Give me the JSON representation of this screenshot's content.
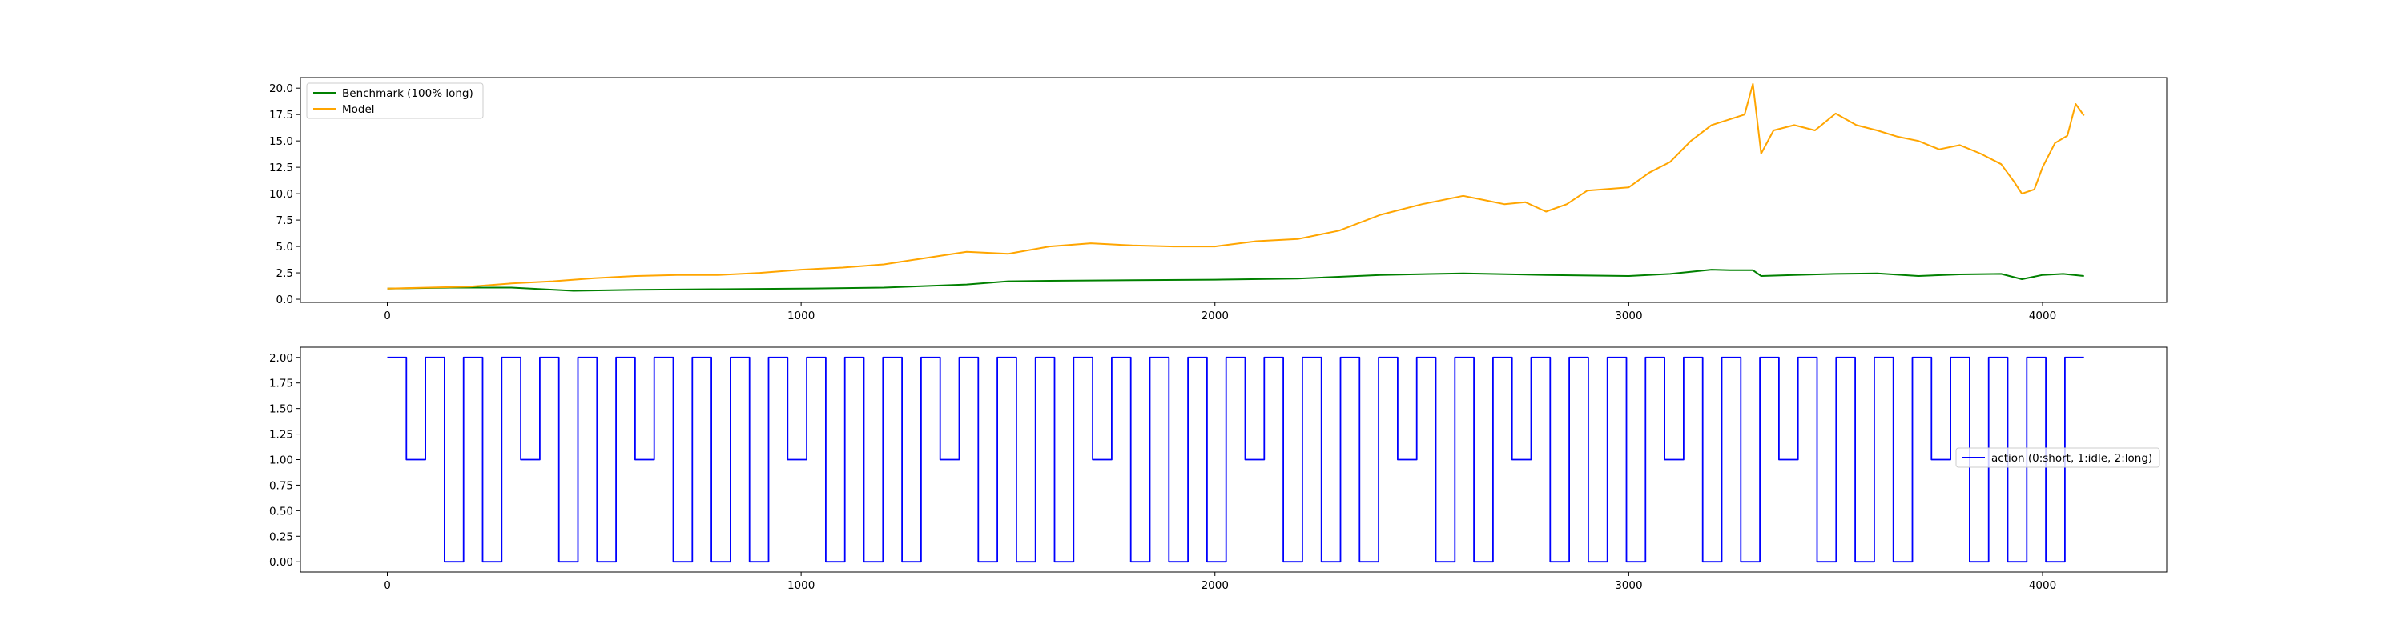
{
  "chart_data": [
    {
      "type": "line",
      "title": "",
      "xlabel": "",
      "ylabel": "",
      "xlim": [
        -210,
        4300
      ],
      "ylim": [
        -0.3,
        21.0
      ],
      "grid": false,
      "legend_position": "upper-left",
      "x_ticks": [
        0,
        1000,
        2000,
        3000,
        4000
      ],
      "x_tick_labels": [
        "0",
        "1000",
        "2000",
        "3000",
        "4000"
      ],
      "y_ticks": [
        0,
        2.5,
        5,
        7.5,
        10,
        12.5,
        15,
        17.5,
        20
      ],
      "y_tick_labels": [
        "0.0",
        "2.5",
        "5.0",
        "7.5",
        "10.0",
        "12.5",
        "15.0",
        "17.5",
        "20.0"
      ],
      "series": [
        {
          "name": "Benchmark (100% long)",
          "color": "#008000",
          "x": [
            0,
            150,
            300,
            450,
            600,
            800,
            1000,
            1200,
            1400,
            1500,
            1600,
            1800,
            2000,
            2200,
            2400,
            2600,
            2800,
            3000,
            3100,
            3200,
            3250,
            3300,
            3320,
            3400,
            3500,
            3600,
            3700,
            3800,
            3900,
            3950,
            4000,
            4050,
            4100
          ],
          "y": [
            1.0,
            1.1,
            1.1,
            0.8,
            0.9,
            0.95,
            1.0,
            1.1,
            1.4,
            1.7,
            1.75,
            1.8,
            1.85,
            1.95,
            2.3,
            2.45,
            2.3,
            2.2,
            2.4,
            2.8,
            2.75,
            2.75,
            2.2,
            2.3,
            2.4,
            2.45,
            2.2,
            2.35,
            2.4,
            1.9,
            2.3,
            2.4,
            2.2
          ]
        },
        {
          "name": "Model",
          "color": "#ffa500",
          "x": [
            0,
            100,
            200,
            300,
            400,
            500,
            600,
            700,
            800,
            900,
            1000,
            1100,
            1200,
            1300,
            1400,
            1500,
            1600,
            1700,
            1800,
            1900,
            2000,
            2100,
            2200,
            2300,
            2400,
            2500,
            2600,
            2650,
            2700,
            2750,
            2800,
            2850,
            2900,
            3000,
            3050,
            3100,
            3150,
            3200,
            3240,
            3280,
            3300,
            3320,
            3350,
            3400,
            3450,
            3500,
            3550,
            3600,
            3650,
            3700,
            3750,
            3800,
            3850,
            3900,
            3930,
            3950,
            3980,
            4000,
            4030,
            4060,
            4080,
            4100
          ],
          "y": [
            1.0,
            1.1,
            1.2,
            1.5,
            1.7,
            2.0,
            2.2,
            2.3,
            2.3,
            2.5,
            2.8,
            3.0,
            3.3,
            3.9,
            4.5,
            4.3,
            5.0,
            5.3,
            5.1,
            5.0,
            5.0,
            5.5,
            5.7,
            6.5,
            8.0,
            9.0,
            9.8,
            9.4,
            9.0,
            9.2,
            8.3,
            9.0,
            10.3,
            10.6,
            12.0,
            13.0,
            15.0,
            16.5,
            17.0,
            17.5,
            20.4,
            13.8,
            16.0,
            16.5,
            16.0,
            17.6,
            16.5,
            16.0,
            15.4,
            15.0,
            14.2,
            14.6,
            13.8,
            12.8,
            11.2,
            10.0,
            10.4,
            12.5,
            14.8,
            15.5,
            18.5,
            17.4
          ]
        }
      ]
    },
    {
      "type": "line",
      "title": "",
      "xlabel": "",
      "ylabel": "",
      "xlim": [
        -210,
        4300
      ],
      "ylim": [
        -0.1,
        2.1
      ],
      "grid": false,
      "legend_position": "center-right",
      "x_ticks": [
        0,
        1000,
        2000,
        3000,
        4000
      ],
      "x_tick_labels": [
        "0",
        "1000",
        "2000",
        "3000",
        "4000"
      ],
      "y_ticks": [
        0,
        0.25,
        0.5,
        0.75,
        1.0,
        1.25,
        1.5,
        1.75,
        2.0
      ],
      "y_tick_labels": [
        "0.00",
        "0.25",
        "0.50",
        "0.75",
        "1.00",
        "1.25",
        "1.50",
        "1.75",
        "2.00"
      ],
      "series": [
        {
          "name": "action (0:short, 1:idle, 2:long)",
          "color": "#0000ff",
          "step": true,
          "x_start": 0,
          "x_end": 4100,
          "values": [
            2,
            1,
            2,
            0,
            2,
            0,
            2,
            1,
            2,
            0,
            2,
            0,
            2,
            1,
            2,
            0,
            2,
            0,
            2,
            0,
            2,
            1,
            2,
            0,
            2,
            0,
            2,
            0,
            2,
            1,
            2,
            0,
            2,
            0,
            2,
            0,
            2,
            1,
            2,
            0,
            2,
            0,
            2,
            0,
            2,
            1,
            2,
            0,
            2,
            0,
            2,
            0,
            2,
            1,
            2,
            0,
            2,
            0,
            2,
            1,
            2,
            0,
            2,
            0,
            2,
            0,
            2,
            1,
            2,
            0,
            2,
            0,
            2,
            1,
            2,
            0,
            2,
            0,
            2,
            0,
            2,
            1,
            2,
            0,
            2,
            0,
            2,
            0,
            2
          ]
        }
      ]
    }
  ]
}
